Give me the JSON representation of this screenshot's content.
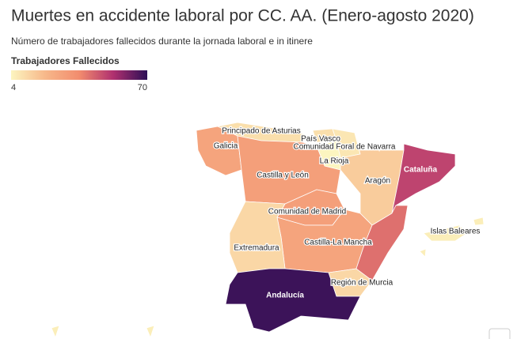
{
  "chart_data": {
    "type": "choropleth",
    "title": "Muertes en accidente laboral por CC. AA. (Enero-agosto 2020)",
    "subtitle": "Número de trabajadores fallecidos durante la jornada laboral e in itinere",
    "legend_title": "Trabajadores Fallecidos",
    "colorscale": [
      "#fcf5c0",
      "#f7b88a",
      "#f28c6e",
      "#b0306f",
      "#2c0f56"
    ],
    "range": [
      4,
      70
    ],
    "regions": [
      {
        "name": "Principado de Asturias",
        "value": 10
      },
      {
        "name": "Galicia",
        "value": 28
      },
      {
        "name": "País Vasco",
        "value": 10
      },
      {
        "name": "Comunidad Foral de Navarra",
        "value": 8
      },
      {
        "name": "La Rioja",
        "value": 4
      },
      {
        "name": "Castilla y León",
        "value": 30
      },
      {
        "name": "Aragón",
        "value": 15
      },
      {
        "name": "Cataluña",
        "value": 50
      },
      {
        "name": "Comunidad de Madrid",
        "value": 30
      },
      {
        "name": "Castilla-La Mancha",
        "value": 28
      },
      {
        "name": null,
        "value": 42
      },
      {
        "name": "Extremadura",
        "value": 12
      },
      {
        "name": "Región de Murcia",
        "value": 12
      },
      {
        "name": "Andalucía",
        "value": 68
      },
      {
        "name": "Islas Baleares",
        "value": 6
      },
      {
        "name": null,
        "value": 6
      }
    ]
  }
}
